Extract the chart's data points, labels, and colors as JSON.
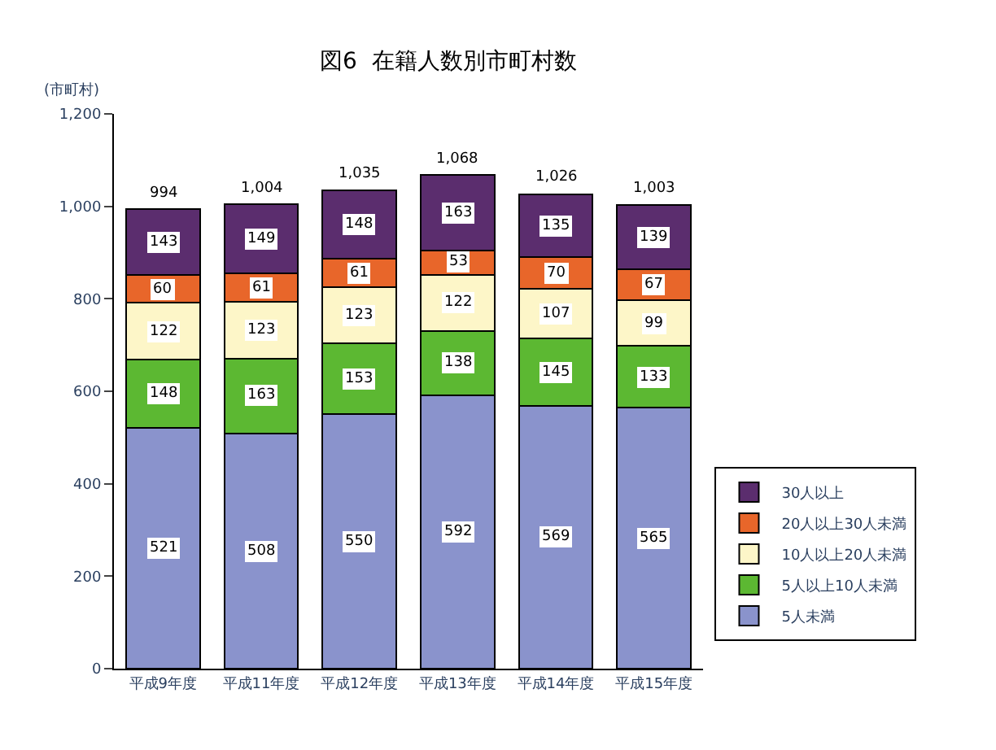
{
  "chart_data": {
    "type": "bar",
    "title": "図6  在籍人数別市町村数",
    "ylabel": "(市町村)",
    "categories": [
      "平成9年度",
      "平成11年度",
      "平成12年度",
      "平成13年度",
      "平成14年度",
      "平成15年度"
    ],
    "stacked": true,
    "data_labels": true,
    "legend": "right",
    "ylim": [
      0,
      1200
    ],
    "yticks": [
      0,
      200,
      400,
      600,
      800,
      {
        "value": 1000,
        "label": "1,000"
      },
      {
        "value": 1200,
        "label": "1,200"
      }
    ],
    "totals": [
      "994",
      "1,004",
      "1,035",
      "1,068",
      "1,026",
      "1,003"
    ],
    "series": [
      {
        "name": "5人未満",
        "color": "#8a93cc",
        "values": [
          521,
          508,
          550,
          592,
          569,
          565
        ]
      },
      {
        "name": "5人以上10人未満",
        "color": "#5cb832",
        "values": [
          148,
          163,
          153,
          138,
          145,
          133
        ]
      },
      {
        "name": "10人以上20人未満",
        "color": "#fdf6c8",
        "values": [
          122,
          123,
          123,
          122,
          107,
          99
        ]
      },
      {
        "name": "20人以上30人未満",
        "color": "#e8662a",
        "values": [
          60,
          61,
          61,
          53,
          70,
          67
        ]
      },
      {
        "name": "30人以上",
        "color": "#5b2d6e",
        "values": [
          143,
          149,
          148,
          163,
          135,
          139
        ]
      }
    ]
  }
}
